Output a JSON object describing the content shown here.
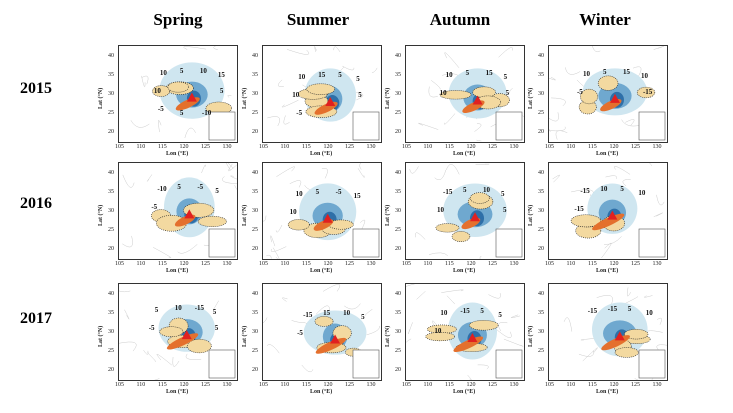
{
  "columns": [
    "Spring",
    "Summer",
    "Autumn",
    "Winter"
  ],
  "rows": [
    "2015",
    "2016",
    "2017"
  ],
  "axes": {
    "xlabel": "Lon (°E)",
    "ylabel": "Lat (°N)",
    "xticks": [
      "105",
      "110",
      "115",
      "120",
      "125",
      "130"
    ],
    "yticks": [
      "40",
      "35",
      "30",
      "25",
      "20"
    ]
  },
  "colors": {
    "positive": "#c0392b",
    "negative": "#2e6fa8",
    "source_marker": "#e02020"
  },
  "panels": [
    {
      "labels": [
        "10",
        "5",
        "10",
        "15",
        "10",
        "5",
        "-5",
        "5",
        "-10"
      ]
    },
    {
      "labels": [
        "10",
        "15",
        "5",
        "5",
        "10",
        "5",
        "-5"
      ]
    },
    {
      "labels": [
        "10",
        "5",
        "15",
        "5",
        "10",
        "5"
      ]
    },
    {
      "labels": [
        "10",
        "5",
        "15",
        "10",
        "-5",
        "-15"
      ]
    },
    {
      "labels": [
        "-10",
        "5",
        "-5",
        "5",
        "-5"
      ]
    },
    {
      "labels": [
        "10",
        "5",
        "-5",
        "15",
        "10"
      ]
    },
    {
      "labels": [
        "-15",
        "5",
        "10",
        "5",
        "10",
        "5"
      ]
    },
    {
      "labels": [
        "-15",
        "10",
        "5",
        "10",
        "-15"
      ]
    },
    {
      "labels": [
        "5",
        "10",
        "-15",
        "5",
        "-5",
        "5"
      ]
    },
    {
      "labels": [
        "-15",
        "15",
        "10",
        "5",
        "-5"
      ]
    },
    {
      "labels": [
        "10",
        "-15",
        "5",
        "5",
        "10"
      ]
    },
    {
      "labels": [
        "-15",
        "-15",
        "5",
        "10"
      ]
    }
  ]
}
